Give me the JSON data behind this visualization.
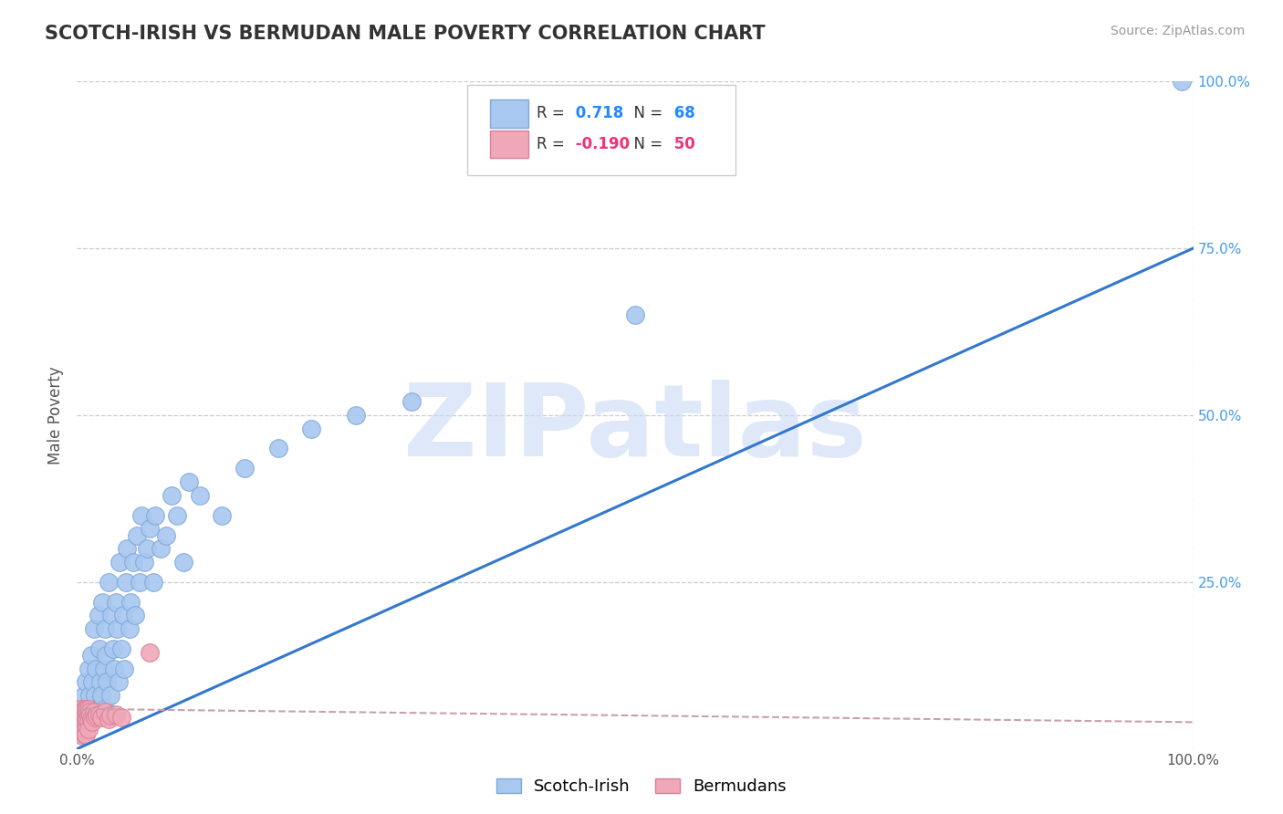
{
  "title": "SCOTCH-IRISH VS BERMUDAN MALE POVERTY CORRELATION CHART",
  "source": "Source: ZipAtlas.com",
  "ylabel": "Male Poverty",
  "xlim": [
    0,
    1
  ],
  "ylim": [
    0,
    1
  ],
  "background_color": "#ffffff",
  "grid_color": "#cccccc",
  "watermark": "ZIPatlas",
  "watermark_color": "#c8daf5",
  "scotch_irish_color": "#a8c8f0",
  "bermudans_color": "#f0a8b8",
  "scotch_irish_edge": "#80a8d8",
  "bermudans_edge": "#d88098",
  "trend_blue_color": "#3378cc",
  "trend_pink_color": "#c8a0b0",
  "R_scotch": 0.718,
  "N_scotch": 68,
  "R_bermudans": -0.19,
  "N_bermudans": 50,
  "scotch_irish_x": [
    0.005,
    0.006,
    0.007,
    0.008,
    0.009,
    0.01,
    0.01,
    0.011,
    0.012,
    0.013,
    0.014,
    0.015,
    0.015,
    0.016,
    0.017,
    0.018,
    0.019,
    0.02,
    0.02,
    0.021,
    0.022,
    0.023,
    0.024,
    0.025,
    0.025,
    0.026,
    0.027,
    0.028,
    0.03,
    0.031,
    0.032,
    0.033,
    0.035,
    0.036,
    0.037,
    0.038,
    0.04,
    0.041,
    0.042,
    0.044,
    0.045,
    0.047,
    0.048,
    0.05,
    0.052,
    0.054,
    0.056,
    0.058,
    0.06,
    0.063,
    0.065,
    0.068,
    0.07,
    0.075,
    0.08,
    0.085,
    0.09,
    0.095,
    0.1,
    0.11,
    0.13,
    0.15,
    0.18,
    0.21,
    0.25,
    0.3,
    0.5,
    0.99
  ],
  "scotch_irish_y": [
    0.05,
    0.08,
    0.03,
    0.1,
    0.06,
    0.04,
    0.12,
    0.08,
    0.06,
    0.14,
    0.1,
    0.05,
    0.18,
    0.08,
    0.12,
    0.06,
    0.2,
    0.05,
    0.15,
    0.1,
    0.08,
    0.22,
    0.12,
    0.06,
    0.18,
    0.14,
    0.1,
    0.25,
    0.08,
    0.2,
    0.15,
    0.12,
    0.22,
    0.18,
    0.1,
    0.28,
    0.15,
    0.2,
    0.12,
    0.25,
    0.3,
    0.18,
    0.22,
    0.28,
    0.2,
    0.32,
    0.25,
    0.35,
    0.28,
    0.3,
    0.33,
    0.25,
    0.35,
    0.3,
    0.32,
    0.38,
    0.35,
    0.28,
    0.4,
    0.38,
    0.35,
    0.42,
    0.45,
    0.48,
    0.5,
    0.52,
    0.65,
    1.0
  ],
  "bermudans_x": [
    0.003,
    0.003,
    0.004,
    0.004,
    0.004,
    0.005,
    0.005,
    0.005,
    0.005,
    0.005,
    0.005,
    0.005,
    0.005,
    0.006,
    0.006,
    0.006,
    0.006,
    0.006,
    0.007,
    0.007,
    0.007,
    0.007,
    0.007,
    0.007,
    0.008,
    0.008,
    0.008,
    0.008,
    0.008,
    0.009,
    0.009,
    0.01,
    0.01,
    0.01,
    0.01,
    0.011,
    0.012,
    0.013,
    0.014,
    0.015,
    0.016,
    0.018,
    0.02,
    0.022,
    0.025,
    0.028,
    0.03,
    0.035,
    0.04,
    0.065
  ],
  "bermudans_y": [
    0.055,
    0.04,
    0.06,
    0.045,
    0.035,
    0.055,
    0.05,
    0.045,
    0.04,
    0.035,
    0.03,
    0.025,
    0.02,
    0.058,
    0.05,
    0.042,
    0.035,
    0.028,
    0.06,
    0.052,
    0.045,
    0.038,
    0.03,
    0.022,
    0.058,
    0.048,
    0.038,
    0.03,
    0.022,
    0.055,
    0.045,
    0.06,
    0.05,
    0.04,
    0.03,
    0.055,
    0.05,
    0.045,
    0.04,
    0.055,
    0.048,
    0.05,
    0.052,
    0.048,
    0.055,
    0.045,
    0.05,
    0.052,
    0.048,
    0.145
  ],
  "trend_line_x0": 0.0,
  "trend_line_x1": 1.0,
  "trend_blue_y0": 0.0,
  "trend_blue_y1": 0.75,
  "trend_pink_y0": 0.06,
  "trend_pink_y1": 0.04
}
